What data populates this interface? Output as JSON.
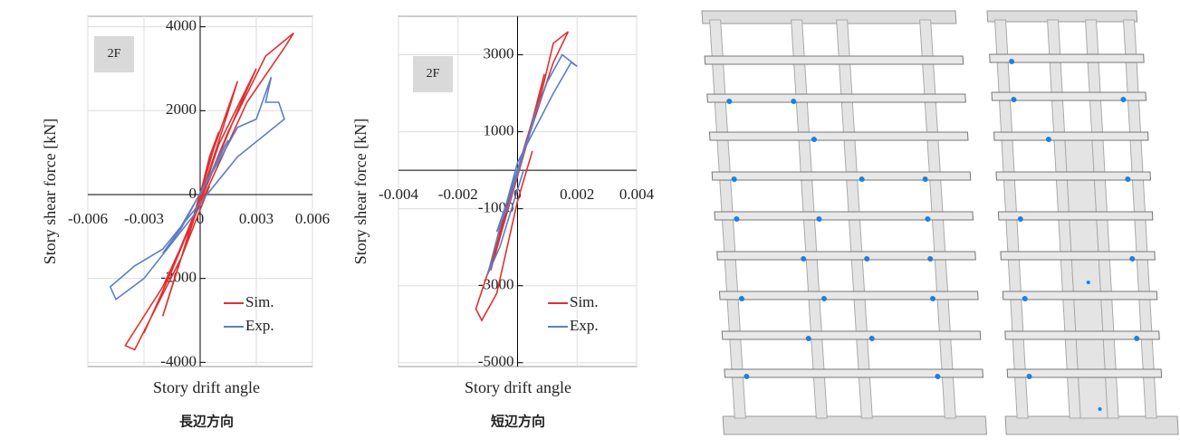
{
  "chart_data": [
    {
      "type": "line",
      "annotation": "2F",
      "x_label": "Story drift angle",
      "y_label": "Story shear force [kN]",
      "caption": "長辺方向",
      "xlim": [
        -0.006,
        0.006
      ],
      "ylim": [
        -4100,
        4250
      ],
      "xticks": [
        -0.006,
        -0.003,
        0,
        0.003,
        0.006
      ],
      "yticks": [
        -4000,
        -2000,
        0,
        2000,
        4000
      ],
      "grid": true,
      "legend": "lower right",
      "series": [
        {
          "name": "Sim.",
          "color": "#e03030",
          "x": [
            0,
            0.0005,
            0.001,
            0.0006,
            -0.0005,
            -0.001,
            -0.0006,
            0.0005,
            0.002,
            0.0013,
            -0.001,
            -0.002,
            -0.0013,
            0.001,
            0.003,
            0.002,
            -0.0015,
            -0.003,
            -0.002,
            0.0015,
            0.0035,
            0.005,
            0.0045,
            0.0025,
            -0.002,
            -0.004,
            -0.0035,
            -0.001,
            0.0005
          ],
          "values": [
            0,
            900,
            1500,
            900,
            -800,
            -1500,
            -900,
            800,
            2700,
            1700,
            -1500,
            -2900,
            -1900,
            1200,
            3000,
            2000,
            -1800,
            -3300,
            -2300,
            1500,
            3300,
            3850,
            3500,
            2200,
            -2200,
            -3600,
            -3700,
            -1500,
            200
          ]
        },
        {
          "name": "Exp.",
          "color": "#5b7fc4",
          "x": [
            0,
            0.001,
            0.0015,
            0.0008,
            -0.001,
            -0.002,
            -0.0012,
            0.001,
            0.002,
            0.003,
            0.0038,
            0.0035,
            0.0042,
            0.0045,
            0.002,
            -0.002,
            -0.0035,
            -0.0048,
            -0.0045,
            -0.003,
            0
          ],
          "values": [
            0,
            900,
            1300,
            700,
            -800,
            -1400,
            -900,
            800,
            1600,
            1800,
            2800,
            2200,
            2200,
            1800,
            900,
            -1300,
            -1700,
            -2200,
            -2500,
            -2000,
            -300
          ]
        }
      ]
    },
    {
      "type": "line",
      "annotation": "2F",
      "x_label": "Story drift angle",
      "y_label": "Story shear force [kN]",
      "caption": "短辺方向",
      "xlim": [
        -0.004,
        0.004
      ],
      "ylim": [
        -5100,
        4000
      ],
      "xticks": [
        -0.004,
        -0.002,
        0,
        0.002,
        0.004
      ],
      "yticks": [
        -5000,
        -3000,
        -1000,
        1000,
        3000
      ],
      "grid": true,
      "legend": "lower right",
      "series": [
        {
          "name": "Sim.",
          "color": "#e03030",
          "x": [
            0,
            0.0003,
            0.0006,
            0.0003,
            -0.0003,
            -0.0006,
            -0.0003,
            0.0005,
            0.0009,
            0.0005,
            -0.0005,
            -0.0009,
            -0.0005,
            0.0008,
            0.0012,
            0.0017,
            0.0012,
            0,
            -0.0008,
            -0.0014,
            -0.0012,
            -0.0007,
            0,
            0.0005
          ],
          "values": [
            0,
            800,
            1500,
            700,
            -700,
            -1500,
            -800,
            1200,
            2500,
            1300,
            -1300,
            -2600,
            -1500,
            2000,
            3300,
            3600,
            2800,
            0,
            -2200,
            -3600,
            -3900,
            -3200,
            -800,
            500
          ]
        },
        {
          "name": "Exp.",
          "color": "#5b7fc4",
          "x": [
            0,
            0.0003,
            0.0006,
            0.0002,
            -0.0003,
            -0.0007,
            -0.0003,
            0.0006,
            0.001,
            0.0015,
            0.002,
            0.0018,
            0.0012,
            0,
            -0.0006,
            -0.001,
            -0.0006,
            0.0002
          ],
          "values": [
            0,
            700,
            1400,
            500,
            -700,
            -1600,
            -900,
            1500,
            2300,
            3000,
            2700,
            2800,
            2000,
            200,
            -1500,
            -2700,
            -2000,
            0
          ]
        }
      ]
    }
  ]
}
